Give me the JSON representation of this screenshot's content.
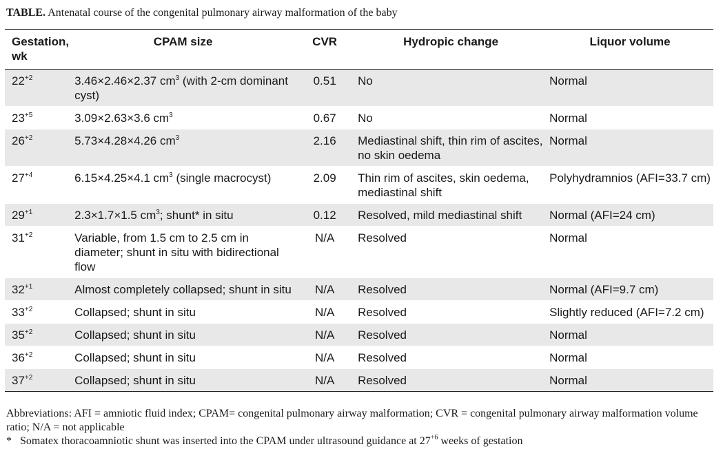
{
  "caption": {
    "label": "TABLE.",
    "text": "Antenatal course of the congenital pulmonary airway malformation of the baby"
  },
  "headers": [
    "Gestation, wk",
    "CPAM size",
    "CVR",
    "Hydropic change",
    "Liquor volume"
  ],
  "rows": [
    {
      "week": "22",
      "days": "+2",
      "size": "3.46×2.46×2.37 cm",
      "size_sup": "3",
      "size_tail": " (with 2-cm dominant cyst)",
      "cvr": "0.51",
      "hydropic": "No",
      "liquor": "Normal"
    },
    {
      "week": "23",
      "days": "+5",
      "size": "3.09×2.63×3.6 cm",
      "size_sup": "3",
      "size_tail": "",
      "cvr": "0.67",
      "hydropic": "No",
      "liquor": "Normal"
    },
    {
      "week": "26",
      "days": "+2",
      "size": "5.73×4.28×4.26 cm",
      "size_sup": "3",
      "size_tail": "",
      "cvr": "2.16",
      "hydropic": "Mediastinal shift, thin rim of ascites, no skin oedema",
      "liquor": "Normal"
    },
    {
      "week": "27",
      "days": "+4",
      "size": "6.15×4.25×4.1 cm",
      "size_sup": "3",
      "size_tail": " (single macrocyst)",
      "cvr": "2.09",
      "hydropic": "Thin rim of ascites, skin oedema, mediastinal shift",
      "liquor": "Polyhydramnios (AFI=33.7 cm)"
    },
    {
      "week": "29",
      "days": "+1",
      "size": "2.3×1.7×1.5 cm",
      "size_sup": "3",
      "size_tail": "; shunt* in situ",
      "cvr": "0.12",
      "hydropic": "Resolved, mild mediastinal shift",
      "liquor": "Normal (AFI=24 cm)"
    },
    {
      "week": "31",
      "days": "+2",
      "size": "Variable, from 1.5 cm to 2.5 cm in diameter; shunt in situ with bidirectional flow",
      "size_sup": "",
      "size_tail": "",
      "cvr": "N/A",
      "hydropic": "Resolved",
      "liquor": "Normal"
    },
    {
      "week": "32",
      "days": "+1",
      "size": "Almost completely collapsed; shunt in situ",
      "size_sup": "",
      "size_tail": "",
      "cvr": "N/A",
      "hydropic": "Resolved",
      "liquor": "Normal (AFI=9.7 cm)"
    },
    {
      "week": "33",
      "days": "+2",
      "size": "Collapsed; shunt in situ",
      "size_sup": "",
      "size_tail": "",
      "cvr": "N/A",
      "hydropic": "Resolved",
      "liquor": "Slightly reduced (AFI=7.2 cm)"
    },
    {
      "week": "35",
      "days": "+2",
      "size": "Collapsed; shunt in situ",
      "size_sup": "",
      "size_tail": "",
      "cvr": "N/A",
      "hydropic": "Resolved",
      "liquor": "Normal"
    },
    {
      "week": "36",
      "days": "+2",
      "size": "Collapsed; shunt in situ",
      "size_sup": "",
      "size_tail": "",
      "cvr": "N/A",
      "hydropic": "Resolved",
      "liquor": "Normal"
    },
    {
      "week": "37",
      "days": "+2",
      "size": "Collapsed; shunt in situ",
      "size_sup": "",
      "size_tail": "",
      "cvr": "N/A",
      "hydropic": "Resolved",
      "liquor": "Normal"
    }
  ],
  "notes": {
    "abbreviations": "Abbreviations: AFI = amniotic fluid index; CPAM= congenital pulmonary airway malformation; CVR = congenital pulmonary airway malformation volume ratio; N/A = not applicable",
    "footnote_mark": "*",
    "footnote_text": "Somatex thoracoamniotic shunt was inserted into the CPAM under ultrasound guidance at 27",
    "footnote_sup": "+6",
    "footnote_tail": " weeks of gestation"
  }
}
